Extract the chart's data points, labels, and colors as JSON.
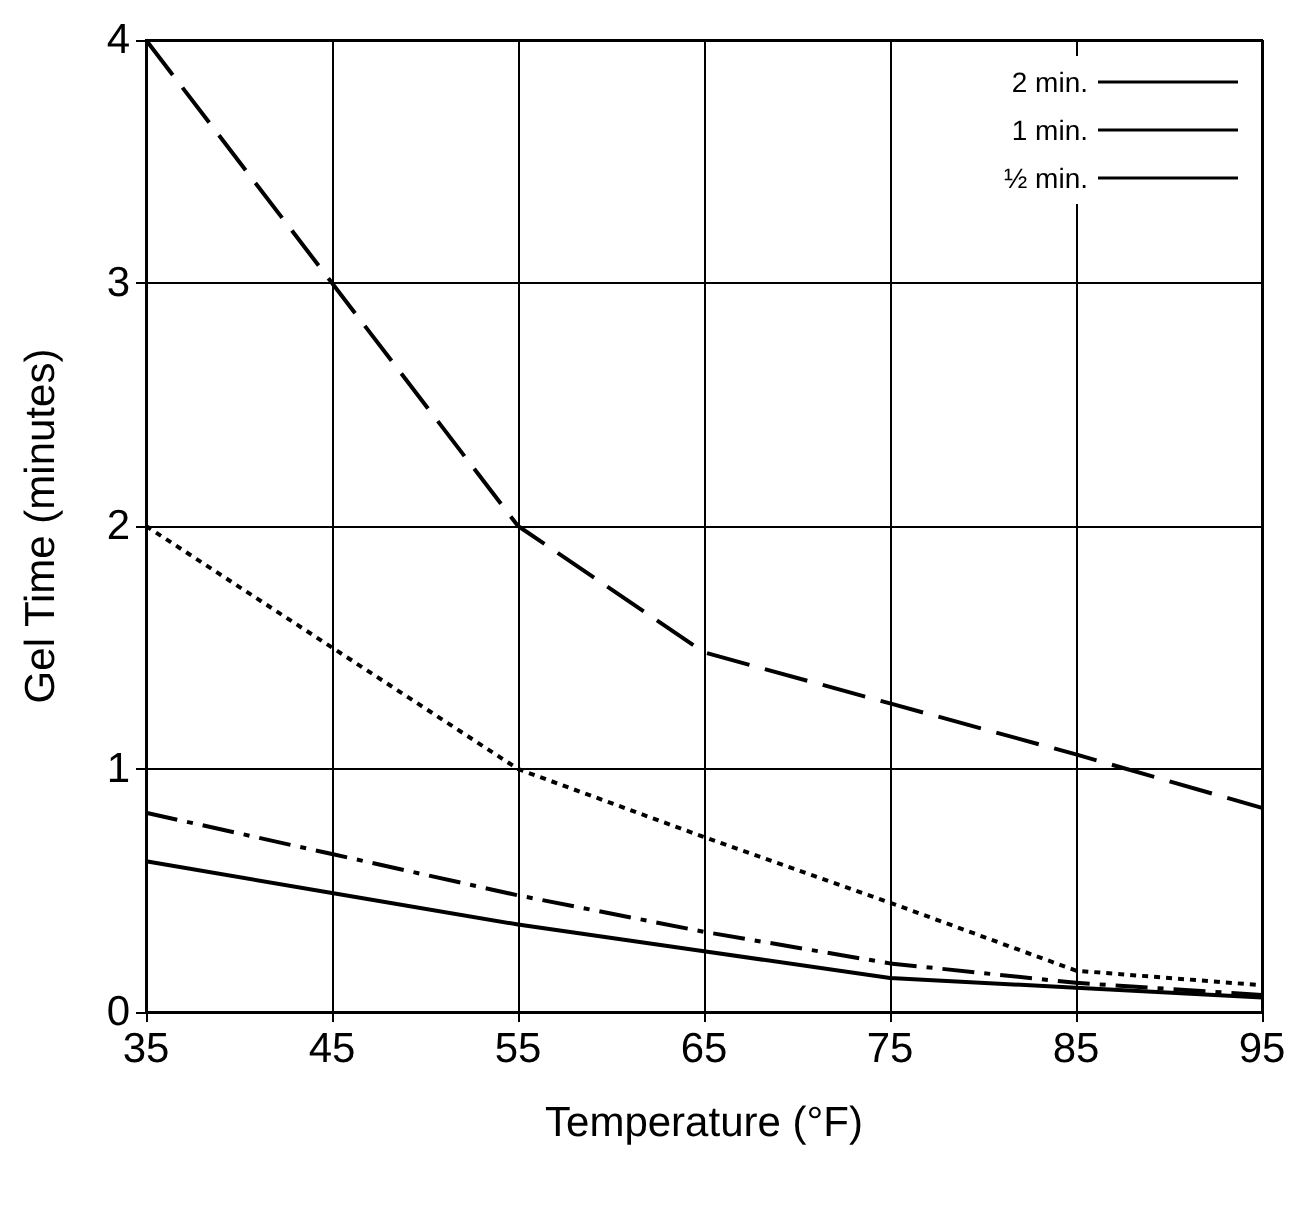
{
  "chart_data": {
    "type": "line",
    "xlabel": "Temperature (°F)",
    "ylabel": "Gel Time (minutes)",
    "x": [
      35,
      45,
      55,
      65,
      75,
      85,
      95
    ],
    "series": [
      {
        "name": "2 min.",
        "color": "#000000",
        "line_style": "dashed",
        "values": [
          4,
          3,
          2,
          1.48,
          1.27,
          1.06,
          0.84
        ]
      },
      {
        "name": "1 min.",
        "color": "#000000",
        "line_style": "dotted",
        "values": [
          2,
          1.5,
          1.0,
          0.72,
          0.45,
          0.17,
          0.11
        ]
      },
      {
        "name": "½ min.",
        "color": "#000000",
        "line_style": "dashdot",
        "values": [
          0.82,
          0.65,
          0.48,
          0.33,
          0.2,
          0.12,
          0.07
        ]
      },
      {
        "color": "#000000",
        "line_style": "solid",
        "values": [
          0.62,
          0.49,
          0.36,
          0.25,
          0.14,
          0.1,
          0.06
        ]
      }
    ],
    "xlim": [
      35,
      95
    ],
    "xticks": [
      35,
      45,
      55,
      65,
      75,
      85,
      95
    ],
    "ylim": [
      0,
      4
    ],
    "yticks": [
      0,
      1,
      2,
      3,
      4
    ],
    "grid": true,
    "legend": "top right",
    "marker": "none"
  }
}
